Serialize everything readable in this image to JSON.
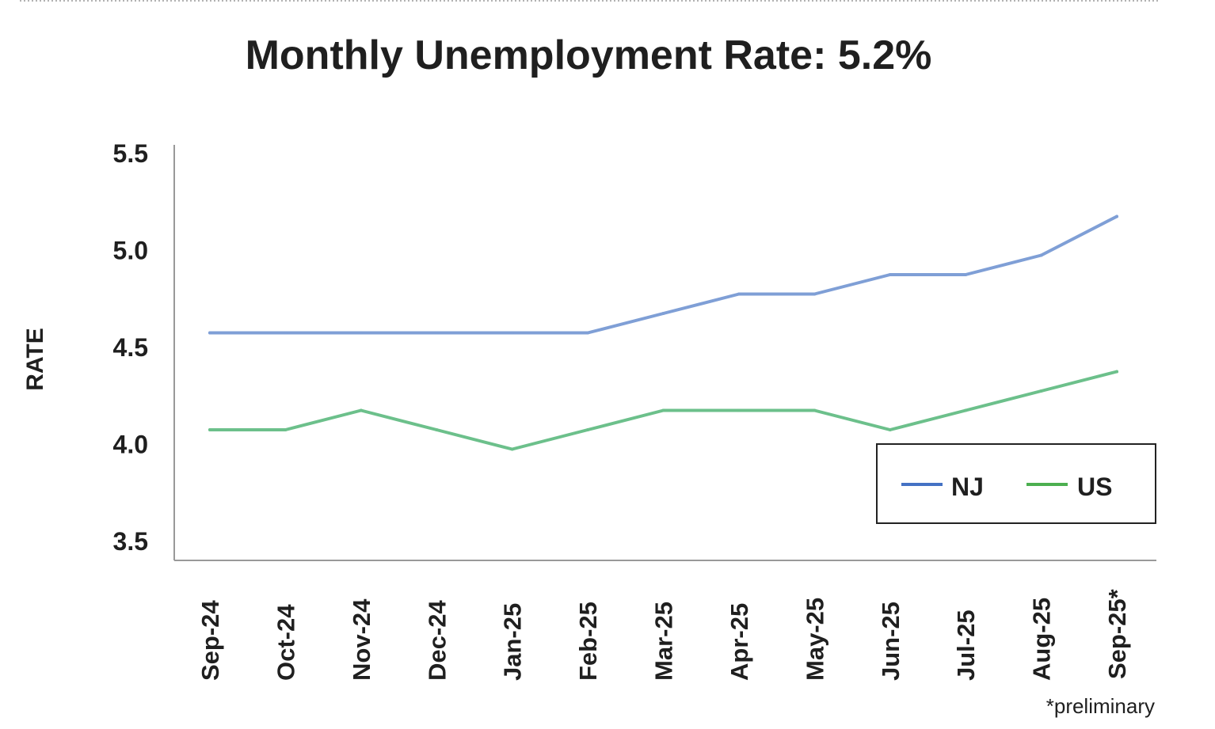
{
  "chart_data": {
    "type": "line",
    "title": "Monthly Unemployment Rate: 5.2%",
    "ylabel": "RATE",
    "xlabel": "",
    "ylim": [
      3.5,
      5.5
    ],
    "yticks": [
      "5.5",
      "5.0",
      "4.5",
      "4.0",
      "3.5"
    ],
    "categories": [
      "Sep-24",
      "Oct-24",
      "Nov-24",
      "Dec-24",
      "Jan-25",
      "Feb-25",
      "Mar-25",
      "Apr-25",
      "May-25",
      "Jun-25",
      "Jul-25",
      "Aug-25",
      "Sep-25*"
    ],
    "series": [
      {
        "name": "NJ",
        "color": "#7f9fd6",
        "values": [
          4.6,
          4.6,
          4.6,
          4.6,
          4.6,
          4.6,
          4.7,
          4.8,
          4.8,
          4.9,
          4.9,
          5.0,
          5.2
        ]
      },
      {
        "name": "US",
        "color": "#6cc08b",
        "values": [
          4.1,
          4.1,
          4.2,
          4.1,
          4.0,
          4.1,
          4.2,
          4.2,
          4.2,
          4.1,
          4.2,
          4.3,
          4.4
        ]
      }
    ],
    "legend_position": "bottom-right",
    "grid": false,
    "footnote": "*preliminary"
  }
}
